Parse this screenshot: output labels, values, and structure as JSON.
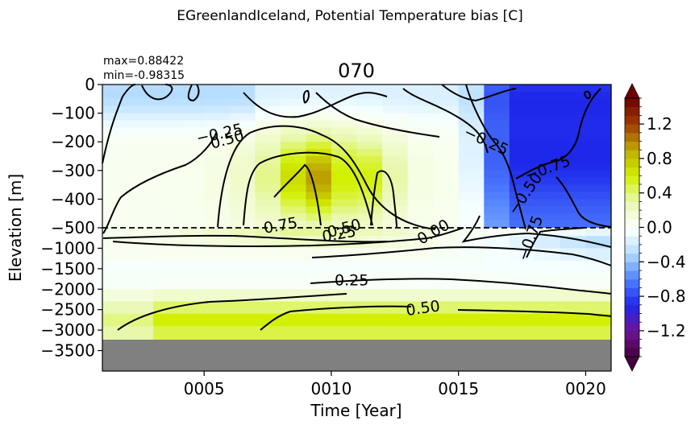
{
  "chart_data": {
    "type": "heatmap",
    "suptitle": "EGreenlandIceland, Potential Temperature bias [C]",
    "title": "070",
    "stats": {
      "max_text": "max=0.88422",
      "min_text": "min=-0.98315"
    },
    "xlabel": "Time [Year]",
    "ylabel": "Elevation [m]",
    "x_ticks": [
      5,
      10,
      15,
      20
    ],
    "x_tick_labels": [
      "0005",
      "0010",
      "0015",
      "0020"
    ],
    "xlim": [
      1,
      21
    ],
    "upper_y_ticks": [
      0,
      -100,
      -200,
      -300,
      -400,
      -500
    ],
    "upper_y_tick_labels": [
      "0",
      "−100",
      "−200",
      "−300",
      "−400",
      "−500"
    ],
    "lower_y_ticks": [
      -1000,
      -1500,
      -2000,
      -2500,
      -3000,
      -3500
    ],
    "lower_y_tick_labels": [
      "−1000",
      "−1500",
      "−2000",
      "−2500",
      "−3000",
      "−3500"
    ],
    "upper_ylim": [
      -500,
      0
    ],
    "lower_ylim": [
      -4000,
      -500
    ],
    "split_depth": -500,
    "seafloor_depth": -3250,
    "colorbar": {
      "range": [
        -1.5,
        1.5
      ],
      "ticks": [
        -1.2,
        -0.8,
        -0.4,
        0.0,
        0.4,
        0.8,
        1.2
      ],
      "tick_labels": [
        "−1.2",
        "−0.8",
        "−0.4",
        "0.0",
        "0.4",
        "0.8",
        "1.2"
      ],
      "extend": "both"
    },
    "contour_levels": [
      -0.75,
      -0.5,
      -0.25,
      0.0,
      0.25,
      0.5,
      0.75
    ],
    "contour_labels": [
      {
        "text": "−0.25",
        "x": 5.6,
        "y": -170
      },
      {
        "text": "0.50",
        "x": 5.9,
        "y": -190
      },
      {
        "text": "−0.25",
        "x": 16.1,
        "y": -195
      },
      {
        "text": "−0.75",
        "x": 18.5,
        "y": -290
      },
      {
        "text": "−0.50",
        "x": 17.6,
        "y": -380
      },
      {
        "text": "−0.75",
        "x": 17.8,
        "y": -750
      },
      {
        "text": "0.75",
        "x": 8.0,
        "y": -490
      },
      {
        "text": "0.50",
        "x": 10.5,
        "y": -500
      },
      {
        "text": "0.25",
        "x": 10.3,
        "y": -640
      },
      {
        "text": "0.00",
        "x": 14.0,
        "y": -590
      },
      {
        "text": "0.25",
        "x": 10.8,
        "y": -1770
      },
      {
        "text": "0.50",
        "x": 13.6,
        "y": -2450
      }
    ]
  }
}
